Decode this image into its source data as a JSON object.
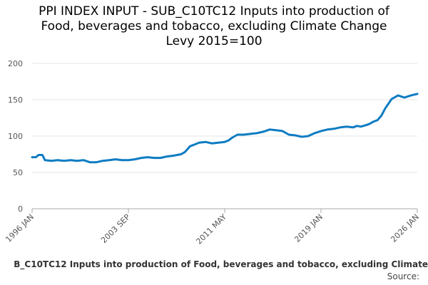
{
  "chart_data": {
    "type": "line",
    "title_lines": [
      "PPI INDEX INPUT - SUB_C10TC12 Inputs into production of",
      "Food, beverages and tobacco, excluding Climate Change",
      "Levy 2015=100"
    ],
    "xlabel": "",
    "ylabel": "",
    "x_ticks": [
      "1996 JAN",
      "2003 SEP",
      "2011 MAY",
      "2019 JAN",
      "2026 JAN"
    ],
    "y_ticks": [
      0,
      50,
      100,
      150,
      200
    ],
    "ylim": [
      0,
      200
    ],
    "xlim": [
      1996.0,
      2026.0
    ],
    "grid": "horizontal",
    "legend_position": "bottom",
    "series": [
      {
        "name": "B_C10TC12 Inputs into production of Food, beverages and tobacco, excluding Climate",
        "color": "#0e7cc2",
        "x": [
          1996.0,
          1996.3,
          1996.5,
          1996.8,
          1997.0,
          1997.5,
          1998.0,
          1998.5,
          1999.0,
          1999.5,
          2000.0,
          2000.5,
          2001.0,
          2001.5,
          2002.0,
          2002.5,
          2003.0,
          2003.5,
          2004.0,
          2004.5,
          2005.0,
          2005.5,
          2006.0,
          2006.5,
          2007.0,
          2007.3,
          2007.6,
          2007.9,
          2008.1,
          2008.3,
          2008.6,
          2009.0,
          2009.5,
          2010.0,
          2010.5,
          2011.0,
          2011.3,
          2011.6,
          2012.0,
          2012.5,
          2013.0,
          2013.5,
          2014.0,
          2014.5,
          2015.0,
          2015.5,
          2016.0,
          2016.5,
          2017.0,
          2017.5,
          2018.0,
          2018.5,
          2019.0,
          2019.5,
          2020.0,
          2020.5,
          2021.0,
          2021.3,
          2021.6,
          2022.0,
          2022.3,
          2022.6,
          2022.9,
          2023.2,
          2023.5,
          2024.0,
          2024.5,
          2025.0,
          2025.5,
          2026.0
        ],
        "values": [
          71,
          71,
          74,
          74,
          67,
          66,
          67,
          66,
          67,
          66,
          67,
          64,
          64,
          66,
          67,
          68,
          67,
          67,
          68,
          70,
          71,
          70,
          70,
          72,
          73,
          74,
          75,
          78,
          82,
          86,
          88,
          91,
          92,
          90,
          91,
          92,
          94,
          98,
          102,
          102,
          103,
          104,
          106,
          109,
          108,
          107,
          102,
          101,
          99,
          100,
          104,
          107,
          109,
          110,
          112,
          113,
          112,
          114,
          113,
          115,
          117,
          120,
          122,
          128,
          138,
          151,
          156,
          153,
          156,
          158
        ]
      }
    ]
  },
  "source_label": "Source:"
}
